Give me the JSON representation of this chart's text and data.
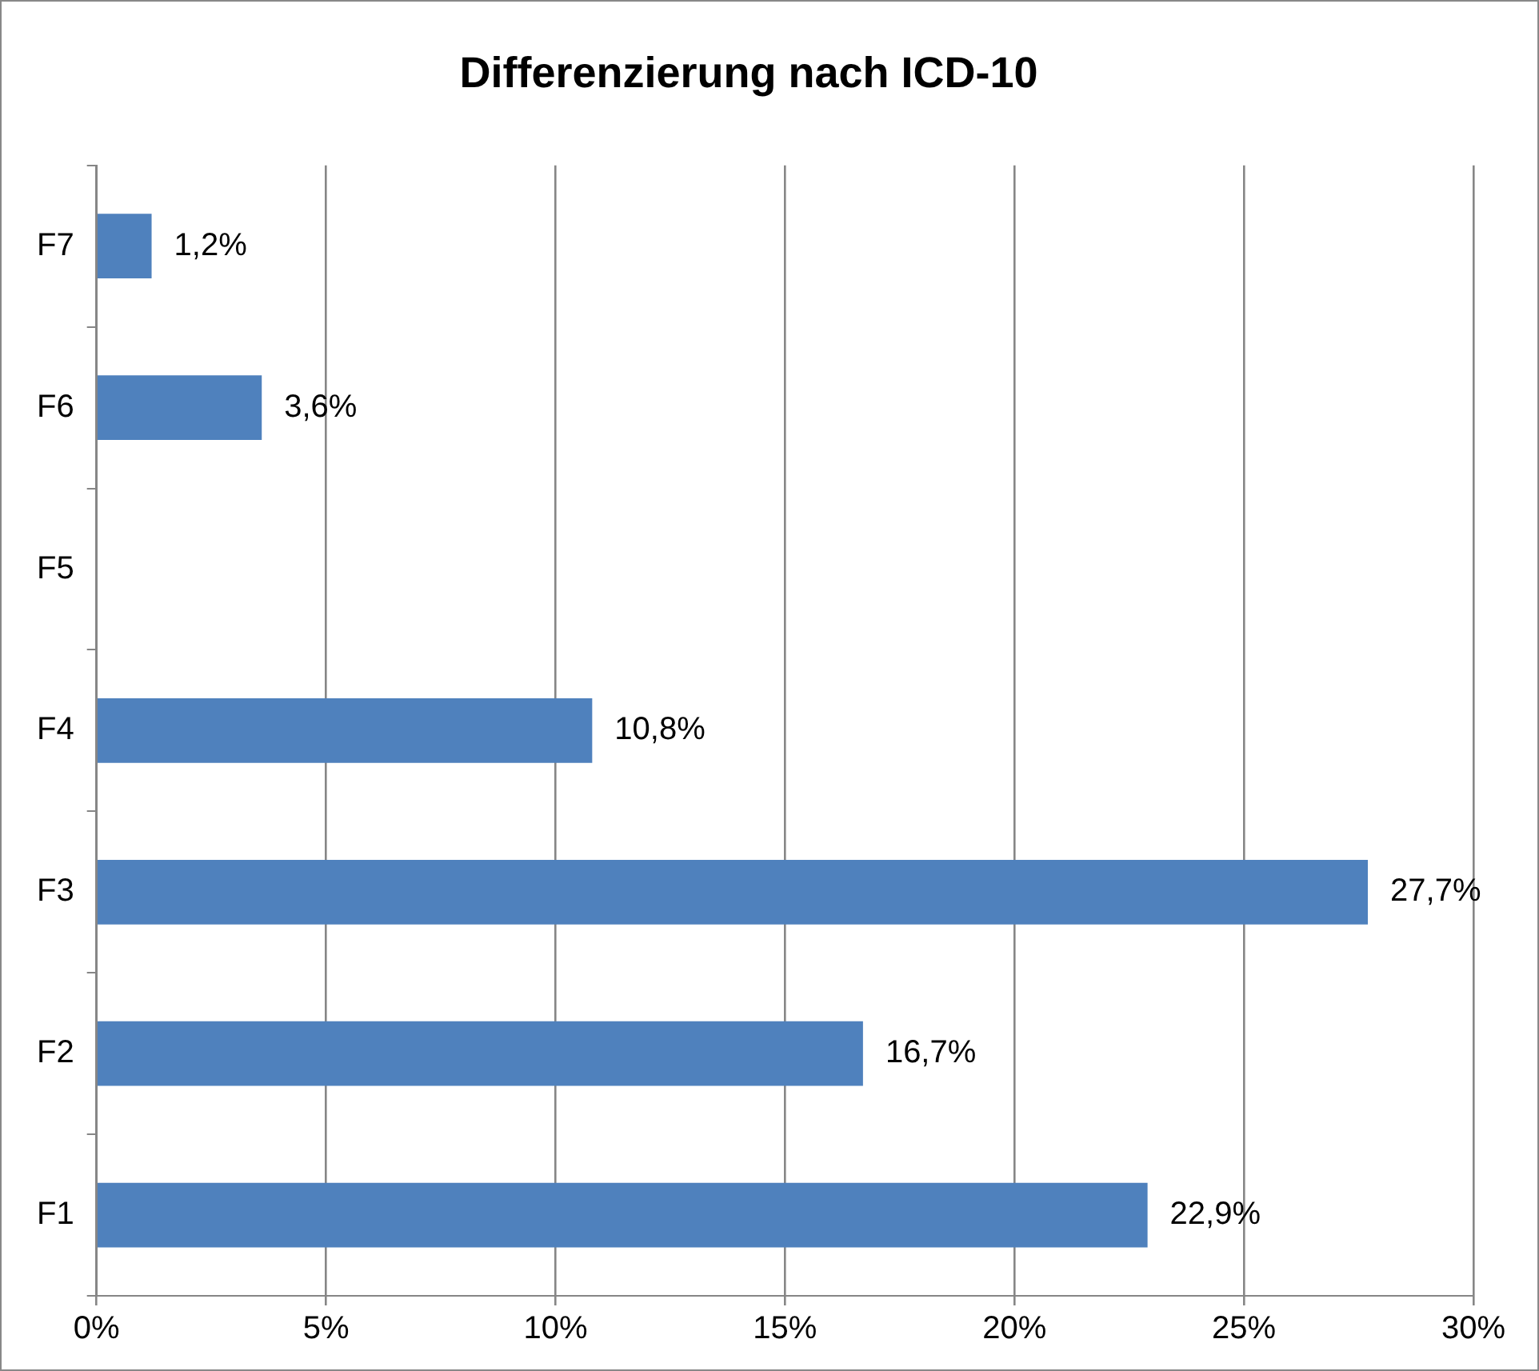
{
  "chart_data": {
    "type": "bar",
    "orientation": "horizontal",
    "title": "Differenzierung nach ICD-10",
    "categories": [
      "F7",
      "F6",
      "F5",
      "F4",
      "F3",
      "F2",
      "F1"
    ],
    "values": [
      1.2,
      3.6,
      null,
      10.8,
      27.7,
      16.7,
      22.9
    ],
    "value_labels": [
      "1,2%",
      "3,6%",
      null,
      "10,8%",
      "27,7%",
      "16,7%",
      "22,9%"
    ],
    "color": "#4f81bd",
    "xlim": [
      0,
      30
    ],
    "xticks": [
      {
        "value": 0,
        "label": "0%"
      },
      {
        "value": 5,
        "label": "5%"
      },
      {
        "value": 10,
        "label": "10%"
      },
      {
        "value": 15,
        "label": "15%"
      },
      {
        "value": 20,
        "label": "20%"
      },
      {
        "value": 25,
        "label": "25%"
      },
      {
        "value": 30,
        "label": "30%"
      }
    ],
    "grid": "x",
    "legend": false
  }
}
